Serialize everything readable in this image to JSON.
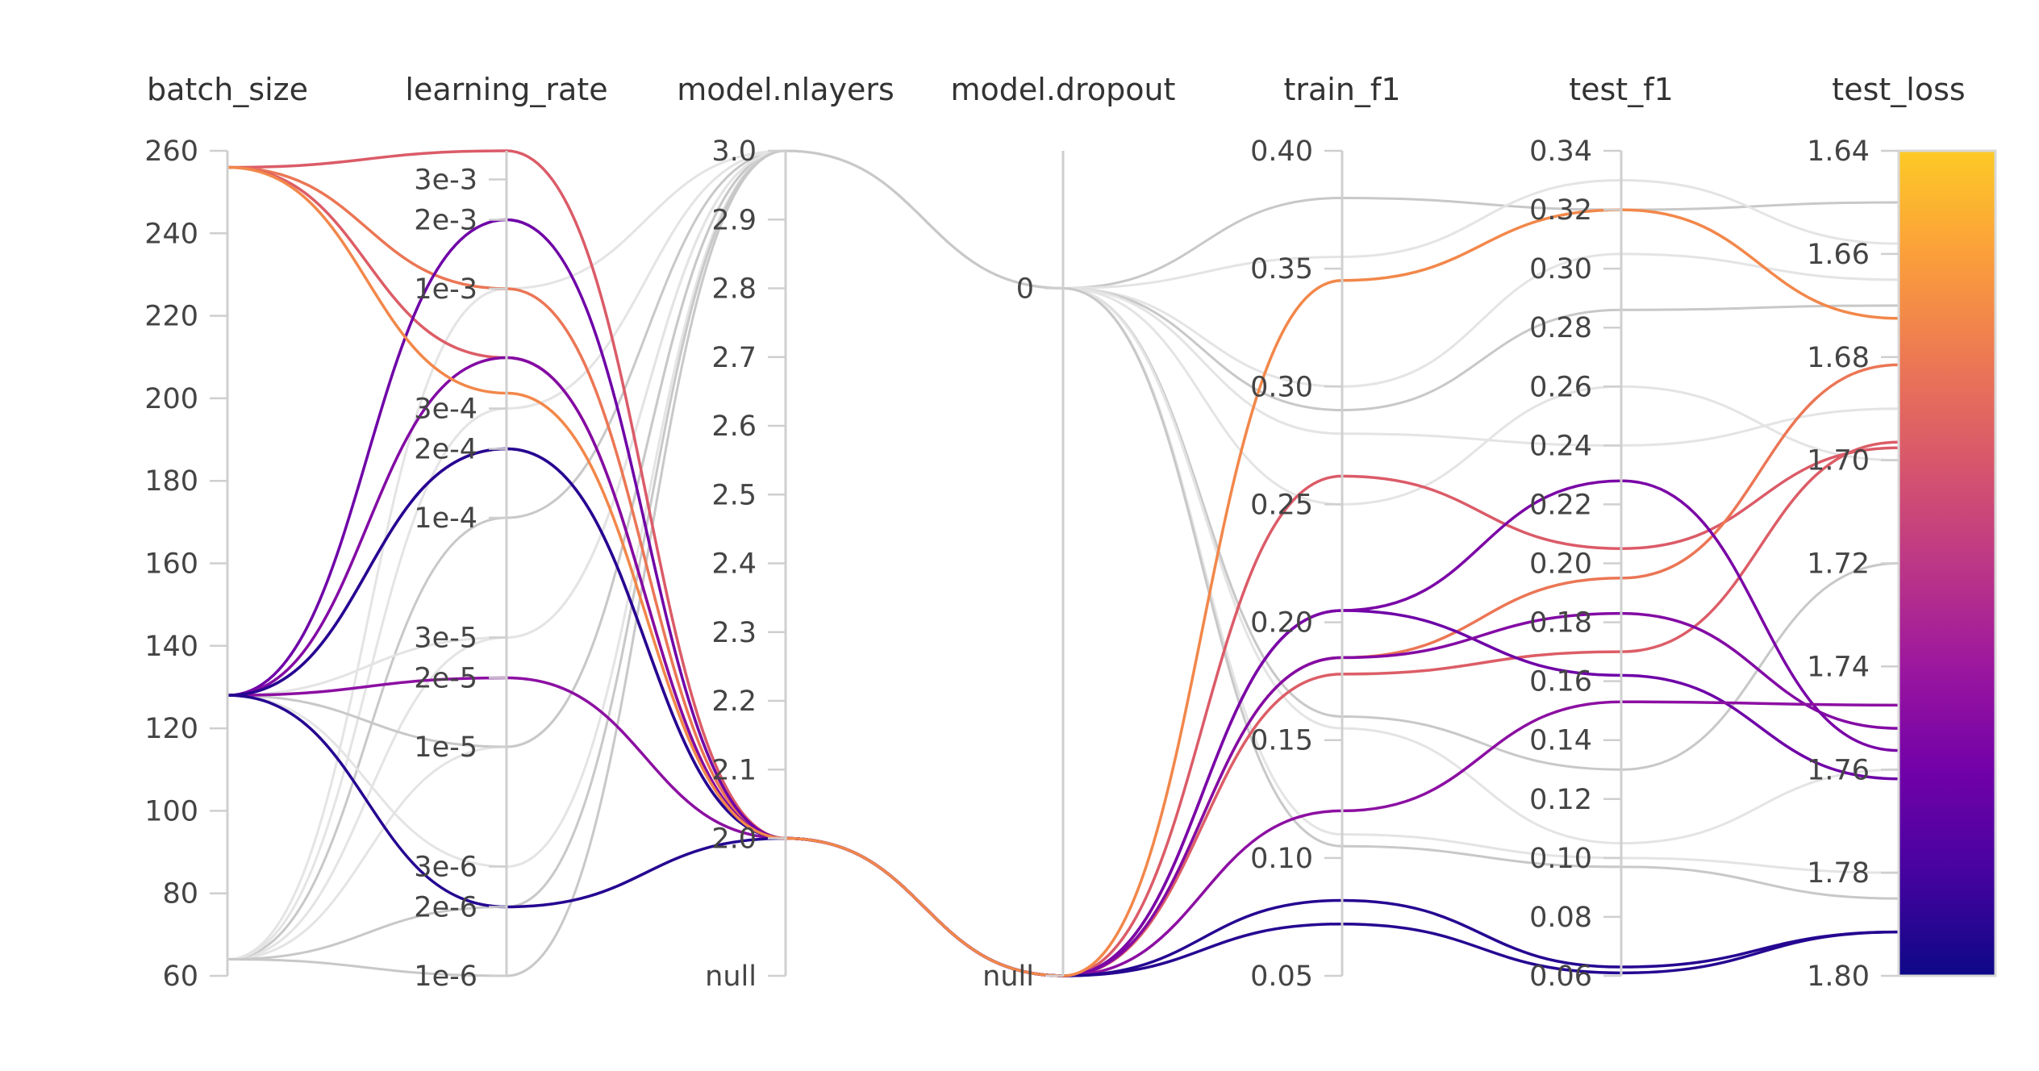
{
  "chart_data": {
    "type": "parallel_coordinates",
    "dimensions": [
      {
        "name": "batch_size",
        "scale": "linear",
        "range": [
          60,
          260
        ],
        "ticks": [
          {
            "v": 60,
            "label": "60"
          },
          {
            "v": 80,
            "label": "80"
          },
          {
            "v": 100,
            "label": "100"
          },
          {
            "v": 120,
            "label": "120"
          },
          {
            "v": 140,
            "label": "140"
          },
          {
            "v": 160,
            "label": "160"
          },
          {
            "v": 180,
            "label": "180"
          },
          {
            "v": 200,
            "label": "200"
          },
          {
            "v": 220,
            "label": "220"
          },
          {
            "v": 240,
            "label": "240"
          },
          {
            "v": 260,
            "label": "260"
          }
        ]
      },
      {
        "name": "learning_rate",
        "scale": "log",
        "range": [
          1e-06,
          0.004
        ],
        "ticks": [
          {
            "v": 1e-06,
            "label": "1e-6"
          },
          {
            "v": 2e-06,
            "label": "2e-6"
          },
          {
            "v": 3e-06,
            "label": "3e-6"
          },
          {
            "v": 1e-05,
            "label": "1e-5"
          },
          {
            "v": 2e-05,
            "label": "2e-5"
          },
          {
            "v": 3e-05,
            "label": "3e-5"
          },
          {
            "v": 0.0001,
            "label": "1e-4"
          },
          {
            "v": 0.0002,
            "label": "2e-4"
          },
          {
            "v": 0.0003,
            "label": "3e-4"
          },
          {
            "v": 0.001,
            "label": "1e-3"
          },
          {
            "v": 0.002,
            "label": "2e-3"
          },
          {
            "v": 0.003,
            "label": "3e-3"
          }
        ]
      },
      {
        "name": "model.nlayers",
        "scale": "linear",
        "range": [
          1.8,
          3.0
        ],
        "null_position": 1.8,
        "ticks": [
          {
            "v": 1.8,
            "label": "null"
          },
          {
            "v": 2.0,
            "label": "2.0"
          },
          {
            "v": 2.1,
            "label": "2.1"
          },
          {
            "v": 2.2,
            "label": "2.2"
          },
          {
            "v": 2.3,
            "label": "2.3"
          },
          {
            "v": 2.4,
            "label": "2.4"
          },
          {
            "v": 2.5,
            "label": "2.5"
          },
          {
            "v": 2.6,
            "label": "2.6"
          },
          {
            "v": 2.7,
            "label": "2.7"
          },
          {
            "v": 2.8,
            "label": "2.8"
          },
          {
            "v": 2.9,
            "label": "2.9"
          },
          {
            "v": 3.0,
            "label": "3.0"
          }
        ]
      },
      {
        "name": "model.dropout",
        "scale": "linear",
        "range": [
          -0.25,
          0.05
        ],
        "null_position": -0.25,
        "ticks": [
          {
            "v": -0.25,
            "label": "null"
          },
          {
            "v": 0,
            "label": "0"
          }
        ]
      },
      {
        "name": "train_f1",
        "scale": "linear",
        "range": [
          0.05,
          0.4
        ],
        "ticks": [
          {
            "v": 0.05,
            "label": "0.05"
          },
          {
            "v": 0.1,
            "label": "0.10"
          },
          {
            "v": 0.15,
            "label": "0.15"
          },
          {
            "v": 0.2,
            "label": "0.20"
          },
          {
            "v": 0.25,
            "label": "0.25"
          },
          {
            "v": 0.3,
            "label": "0.30"
          },
          {
            "v": 0.35,
            "label": "0.35"
          },
          {
            "v": 0.4,
            "label": "0.40"
          }
        ]
      },
      {
        "name": "test_f1",
        "scale": "linear",
        "range": [
          0.06,
          0.34
        ],
        "ticks": [
          {
            "v": 0.06,
            "label": "0.06"
          },
          {
            "v": 0.08,
            "label": "0.08"
          },
          {
            "v": 0.1,
            "label": "0.10"
          },
          {
            "v": 0.12,
            "label": "0.12"
          },
          {
            "v": 0.14,
            "label": "0.14"
          },
          {
            "v": 0.16,
            "label": "0.16"
          },
          {
            "v": 0.18,
            "label": "0.18"
          },
          {
            "v": 0.2,
            "label": "0.20"
          },
          {
            "v": 0.22,
            "label": "0.22"
          },
          {
            "v": 0.24,
            "label": "0.24"
          },
          {
            "v": 0.26,
            "label": "0.26"
          },
          {
            "v": 0.28,
            "label": "0.28"
          },
          {
            "v": 0.3,
            "label": "0.30"
          },
          {
            "v": 0.32,
            "label": "0.32"
          },
          {
            "v": 0.34,
            "label": "0.34"
          }
        ]
      },
      {
        "name": "test_loss",
        "scale": "linear_inverted",
        "range": [
          1.64,
          1.8
        ],
        "ticks": [
          {
            "v": 1.64,
            "label": "1.64"
          },
          {
            "v": 1.66,
            "label": "1.66"
          },
          {
            "v": 1.68,
            "label": "1.68"
          },
          {
            "v": 1.7,
            "label": "1.70"
          },
          {
            "v": 1.72,
            "label": "1.72"
          },
          {
            "v": 1.74,
            "label": "1.74"
          },
          {
            "v": 1.76,
            "label": "1.76"
          },
          {
            "v": 1.78,
            "label": "1.78"
          },
          {
            "v": 1.8,
            "label": "1.80"
          }
        ]
      }
    ],
    "color_dimension": "test_loss",
    "colorscale": [
      "#0d0887",
      "#46039f",
      "#7201a8",
      "#9c179e",
      "#bd3786",
      "#d8576b",
      "#ed7953",
      "#fb9f3a",
      "#fdca26"
    ],
    "highlighted_runs": [
      {
        "values": [
          256,
          0.004,
          2.0,
          "null",
          0.262,
          0.205,
          1.6976
        ]
      },
      {
        "values": [
          256,
          0.001,
          2.0,
          "null",
          0.185,
          0.195,
          1.6815
        ]
      },
      {
        "values": [
          256,
          0.0005,
          2.0,
          "null",
          0.178,
          0.17,
          1.6965
        ]
      },
      {
        "values": [
          128,
          0.002,
          2.0,
          "null",
          0.205,
          0.162,
          1.7618
        ]
      },
      {
        "values": [
          128,
          0.0005,
          2.0,
          "null",
          0.185,
          0.183,
          1.752
        ]
      },
      {
        "values": [
          128,
          0.0002,
          2.0,
          "null",
          0.205,
          0.228,
          1.7563
        ]
      },
      {
        "values": [
          128,
          2e-05,
          2.0,
          "null",
          0.12,
          0.153,
          1.7475
        ]
      },
      {
        "values": [
          128,
          2e-06,
          2.0,
          "null",
          0.072,
          0.061,
          1.7915
        ]
      },
      {
        "values": [
          128,
          0.0002,
          2.0,
          "null",
          0.082,
          0.063,
          1.7915
        ]
      },
      {
        "values": [
          256,
          0.00035,
          2.0,
          "null",
          0.345,
          0.32,
          1.6725
        ]
      }
    ],
    "background_runs": [
      {
        "values": [
          64,
          1e-06,
          3.0,
          0,
          0.38,
          0.32,
          1.65
        ]
      },
      {
        "values": [
          64,
          1e-05,
          3.0,
          0,
          0.355,
          0.33,
          1.658
        ]
      },
      {
        "values": [
          64,
          3e-05,
          3.0,
          0,
          0.3,
          0.305,
          1.665
        ]
      },
      {
        "values": [
          64,
          0.0001,
          3.0,
          0,
          0.29,
          0.286,
          1.67
        ]
      },
      {
        "values": [
          64,
          0.0003,
          3.0,
          0,
          0.28,
          0.24,
          1.69
        ]
      },
      {
        "values": [
          64,
          0.001,
          3.0,
          0,
          0.25,
          0.26,
          1.7
        ]
      },
      {
        "values": [
          128,
          1e-05,
          3.0,
          0,
          0.16,
          0.13,
          1.72
        ]
      },
      {
        "values": [
          128,
          3e-05,
          3.0,
          0,
          0.155,
          0.105,
          1.76
        ]
      },
      {
        "values": [
          128,
          3e-06,
          3.0,
          0,
          0.11,
          0.1,
          1.78
        ]
      },
      {
        "values": [
          64,
          2e-06,
          3.0,
          0,
          0.105,
          0.097,
          1.785
        ]
      }
    ]
  }
}
